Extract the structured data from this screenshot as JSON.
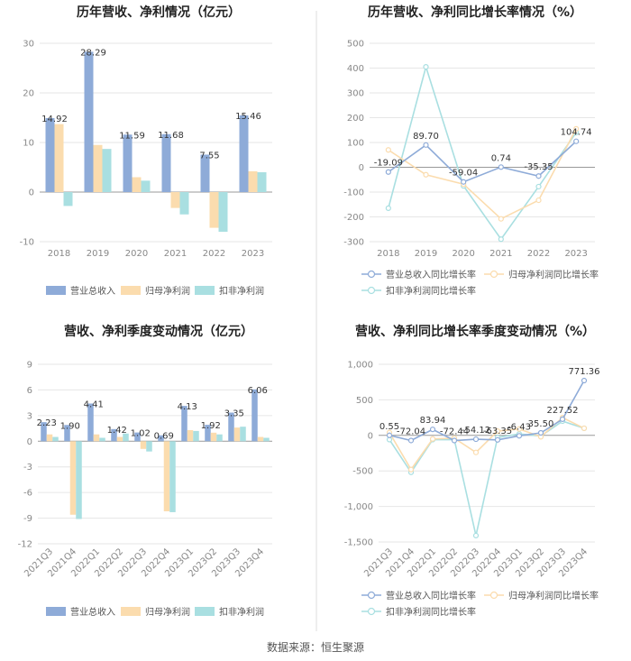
{
  "colors": {
    "revenue": "#8eabd8",
    "netprofit": "#fbdcae",
    "deducted": "#a9dfe1",
    "axis": "#bbbbbb",
    "grid": "#e6e6e6",
    "divider": "#dddddd"
  },
  "source": "数据来源：恒生聚源",
  "chart_data": [
    {
      "type": "bar",
      "title": "历年营收、净利情况（亿元）",
      "categories": [
        "2018",
        "2019",
        "2020",
        "2021",
        "2022",
        "2023"
      ],
      "ylim": [
        -10,
        30
      ],
      "yticks": [
        -10,
        0,
        10,
        20,
        30
      ],
      "series": [
        {
          "name": "营业总收入",
          "values": [
            14.92,
            28.29,
            11.59,
            11.68,
            7.55,
            15.46
          ]
        },
        {
          "name": "归母净利润",
          "values": [
            13.7,
            9.5,
            3.0,
            -3.2,
            -7.2,
            4.2
          ]
        },
        {
          "name": "扣非净利润",
          "values": [
            -2.8,
            8.7,
            2.3,
            -4.5,
            -8.0,
            4.0
          ]
        }
      ],
      "labels": [
        "14.92",
        "28.29",
        "11.59",
        "11.68",
        "7.55",
        "15.46"
      ]
    },
    {
      "type": "line",
      "title": "历年营收、净利同比增长率情况（%）",
      "categories": [
        "2018",
        "2019",
        "2020",
        "2021",
        "2022",
        "2023"
      ],
      "ylim": [
        -300,
        500
      ],
      "yticks": [
        -300,
        -200,
        -100,
        0,
        100,
        200,
        300,
        400,
        500
      ],
      "series": [
        {
          "name": "营业总收入同比增长率",
          "values": [
            -19.09,
            89.7,
            -59.04,
            0.74,
            -35.35,
            104.74
          ]
        },
        {
          "name": "归母净利润同比增长率",
          "values": [
            70,
            -30,
            -68,
            -208,
            -133,
            155
          ]
        },
        {
          "name": "扣非净利润同比增长率",
          "values": [
            -165,
            405,
            -75,
            -290,
            -78,
            140
          ]
        }
      ],
      "labels": [
        "-19.09",
        "89.70",
        "-59.04",
        "0.74",
        "-35.35",
        "104.74"
      ]
    },
    {
      "type": "bar",
      "title": "营收、净利季度变动情况（亿元）",
      "categories": [
        "2021Q3",
        "2021Q4",
        "2022Q1",
        "2022Q2",
        "2022Q3",
        "2022Q4",
        "2023Q1",
        "2023Q2",
        "2023Q3",
        "2023Q4"
      ],
      "ylim": [
        -12,
        9
      ],
      "yticks": [
        -12,
        -9,
        -6,
        -3,
        0,
        3,
        6,
        9
      ],
      "series": [
        {
          "name": "营业总收入",
          "values": [
            2.23,
            1.9,
            4.41,
            1.42,
            1.02,
            0.69,
            4.13,
            1.92,
            3.35,
            6.06
          ]
        },
        {
          "name": "归母净利润",
          "values": [
            0.8,
            -8.6,
            0.8,
            0.5,
            -0.9,
            -8.2,
            1.3,
            1.0,
            1.6,
            0.5
          ]
        },
        {
          "name": "扣非净利润",
          "values": [
            0.5,
            -9.1,
            0.4,
            0.9,
            -1.2,
            -8.3,
            1.2,
            0.8,
            1.7,
            0.4
          ]
        }
      ],
      "labels": [
        "2.23",
        "1.90",
        "4.41",
        "1.42",
        "1.02",
        "0.69",
        "4.13",
        "1.92",
        "3.35",
        "6.06"
      ]
    },
    {
      "type": "line",
      "title": "营收、净利同比增长率季度变动情况（%）",
      "categories": [
        "2021Q3",
        "2021Q4",
        "2022Q1",
        "2022Q2",
        "2022Q3",
        "2022Q4",
        "2023Q1",
        "2023Q2",
        "2023Q3",
        "2023Q4"
      ],
      "ylim": [
        -1500,
        1000
      ],
      "yticks": [
        -1500,
        -1000,
        -500,
        0,
        500,
        1000
      ],
      "ytick_labels": [
        "-1,500",
        "-1,000",
        "-500",
        "0",
        "500",
        "1,000"
      ],
      "series": [
        {
          "name": "营业总收入同比增长率",
          "values": [
            0.55,
            -72.04,
            83.94,
            -72.44,
            -54.12,
            -63.35,
            -6.43,
            35.5,
            227.52,
            771.36
          ]
        },
        {
          "name": "归母净利润同比增长率",
          "values": [
            40,
            -480,
            -50,
            -40,
            -240,
            60,
            90,
            -20,
            250,
            100
          ]
        },
        {
          "name": "扣非净利润同比增长率",
          "values": [
            -60,
            -520,
            -60,
            -60,
            -1410,
            -30,
            20,
            -10,
            200,
            100
          ]
        }
      ],
      "labels": [
        "0.55",
        "-72.04",
        "83.94",
        "-72.44",
        "-54.12",
        "-63.35",
        "-6.43",
        "35.50",
        "227.52",
        "771.36"
      ]
    }
  ]
}
